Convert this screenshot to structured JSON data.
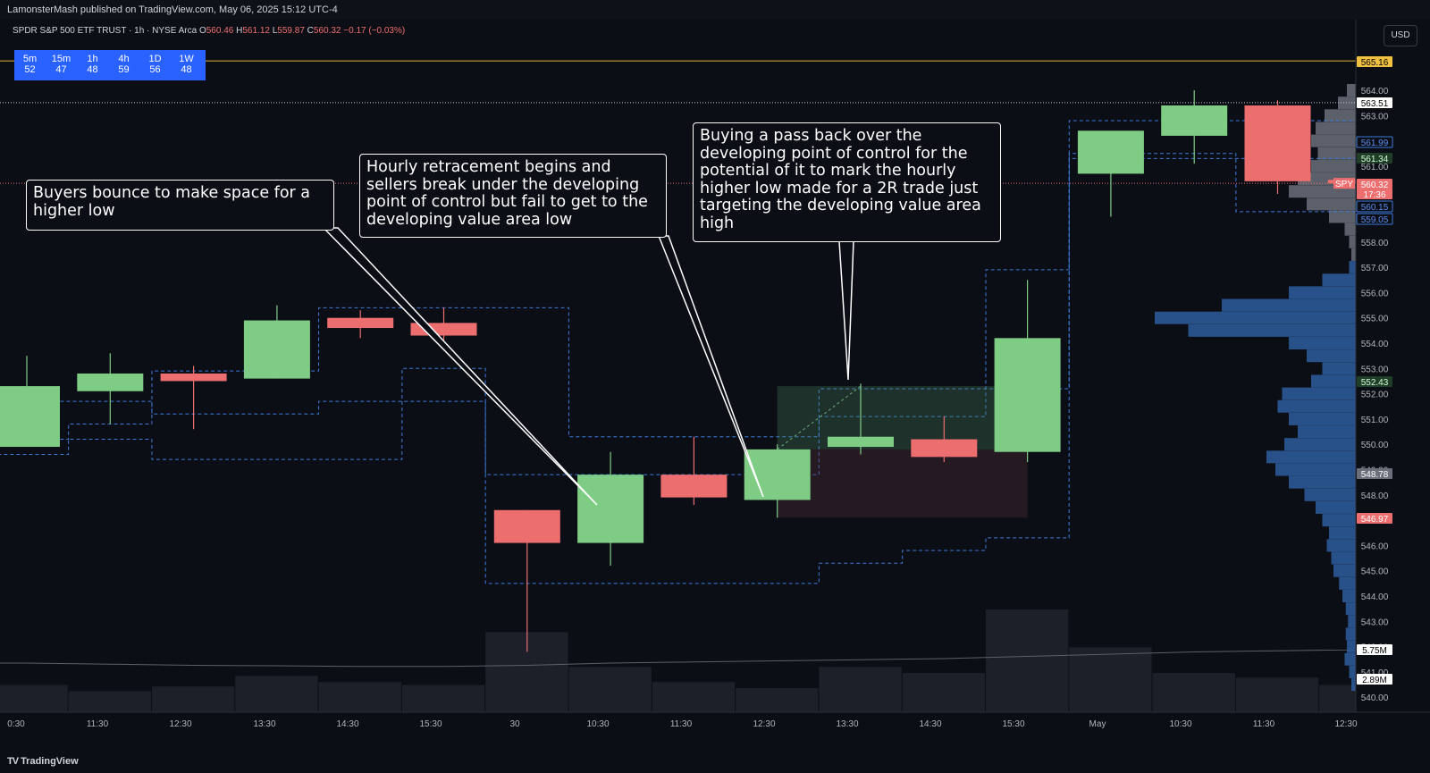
{
  "header": {
    "published": "LamonsterMash published on TradingView.com, May 06, 2025 15:12 UTC-4"
  },
  "legend": {
    "symbol": "SPDR S&P 500 ETF TRUST · 1h · NYSE Arca",
    "o_label": "O",
    "o": "560.46",
    "h_label": "H",
    "h": "561.12",
    "l_label": "L",
    "l": "559.87",
    "c_label": "C",
    "c": "560.32",
    "chg": "−0.17 (−0.03%)"
  },
  "currency_button": "USD",
  "rsi_table": [
    {
      "tf": "5m",
      "val": "52"
    },
    {
      "tf": "15m",
      "val": "47"
    },
    {
      "tf": "1h",
      "val": "48"
    },
    {
      "tf": "4h",
      "val": "59"
    },
    {
      "tf": "1D",
      "val": "56"
    },
    {
      "tf": "1W",
      "val": "48"
    }
  ],
  "callouts": [
    {
      "text": "Buyers bounce to make space for a higher low"
    },
    {
      "text": "Hourly retracement begins and sellers break under the developing point of control but fail to get to the developing value area low"
    },
    {
      "text": "Buying a pass back over the developing point of control for the potential of it to mark the hourly higher low made for a 2R trade just targeting the developing value area high"
    }
  ],
  "footer": {
    "brand": "TradingView",
    "logo": "TV"
  },
  "colors": {
    "background": "#0c0e15",
    "up": "#7fcc85",
    "down": "#ec6e6e",
    "value_area_line": "#3d7bd9",
    "volume_profile": "#2f5d9e",
    "gold_line": "#c8a030",
    "volume_bar": "#1d2029"
  },
  "chart_data": {
    "type": "candlestick",
    "title": "SPDR S&P 500 ETF TRUST · 1h · NYSE Arca",
    "ylim": [
      539.5,
      568.5
    ],
    "y_ticks": [
      540,
      541,
      542,
      543,
      544,
      545,
      546,
      547,
      548,
      549,
      550,
      551,
      552,
      553,
      554,
      555,
      556,
      557,
      558,
      559,
      560,
      561,
      562,
      563,
      564
    ],
    "x_labels": [
      "0:30",
      "11:30",
      "12:30",
      "13:30",
      "14:30",
      "15:30",
      "30",
      "10:30",
      "11:30",
      "12:30",
      "13:30",
      "14:30",
      "15:30",
      "May",
      "10:30",
      "11:30",
      "12:30"
    ],
    "candles": [
      {
        "time": "10:30",
        "o": 549.9,
        "h": 553.5,
        "l": 549.9,
        "c": 552.3
      },
      {
        "time": "11:30",
        "o": 552.1,
        "h": 553.6,
        "l": 550.8,
        "c": 552.8
      },
      {
        "time": "12:30",
        "o": 552.8,
        "h": 553.1,
        "l": 550.6,
        "c": 552.5
      },
      {
        "time": "13:30",
        "o": 552.6,
        "h": 555.5,
        "l": 552.6,
        "c": 554.9
      },
      {
        "time": "14:30",
        "o": 555.0,
        "h": 555.3,
        "l": 554.2,
        "c": 554.6
      },
      {
        "time": "15:30",
        "o": 554.8,
        "h": 555.4,
        "l": 554.0,
        "c": 554.3
      },
      {
        "time": "09:30",
        "o": 547.4,
        "h": 547.4,
        "l": 541.8,
        "c": 546.1
      },
      {
        "time": "10:30",
        "o": 546.1,
        "h": 549.7,
        "l": 545.2,
        "c": 548.8
      },
      {
        "time": "11:30",
        "o": 548.8,
        "h": 550.3,
        "l": 547.6,
        "c": 547.9
      },
      {
        "time": "12:30",
        "o": 547.8,
        "h": 550.0,
        "l": 547.1,
        "c": 549.8
      },
      {
        "time": "13:30",
        "o": 549.9,
        "h": 552.4,
        "l": 549.6,
        "c": 550.3
      },
      {
        "time": "14:30",
        "o": 550.2,
        "h": 551.1,
        "l": 549.3,
        "c": 549.5
      },
      {
        "time": "15:30",
        "o": 549.7,
        "h": 556.5,
        "l": 549.3,
        "c": 554.2
      },
      {
        "time": "09:30",
        "o": 560.7,
        "h": 562.3,
        "l": 559.0,
        "c": 562.4
      },
      {
        "time": "10:30",
        "o": 562.2,
        "h": 564.0,
        "l": 561.1,
        "c": 563.4
      },
      {
        "time": "11:30",
        "o": 563.4,
        "h": 563.6,
        "l": 559.9,
        "c": 560.4
      },
      {
        "time": "12:30",
        "o": 560.46,
        "h": 561.12,
        "l": 559.87,
        "c": 560.32
      }
    ],
    "volume": [
      1.8,
      1.4,
      1.7,
      2.4,
      2.0,
      1.8,
      5.3,
      3.0,
      2.0,
      1.6,
      3.0,
      2.6,
      6.8,
      4.3,
      2.6,
      2.3,
      1.8
    ],
    "volume_ma_values": [
      2.2,
      2.15,
      2.1,
      2.08,
      2.05,
      2.05,
      2.1,
      2.2,
      2.25,
      2.3,
      2.35,
      2.4,
      2.5,
      2.6,
      2.7,
      2.75,
      2.8
    ],
    "poc_line": [
      551.7,
      551.7,
      551.2,
      551.2,
      551.7,
      551.7,
      548.8,
      548.8,
      548.8,
      548.8,
      552.2,
      552.2,
      552.2,
      561.3,
      561.3,
      561.3,
      561.3
    ],
    "vah_line": [
      550.2,
      550.8,
      552.9,
      552.9,
      555.4,
      555.4,
      555.4,
      550.3,
      550.3,
      550.3,
      551.1,
      551.1,
      556.9,
      562.8,
      562.8,
      562.8,
      562.8
    ],
    "val_line": [
      549.6,
      550.2,
      549.4,
      549.4,
      549.4,
      553.0,
      544.5,
      544.5,
      544.5,
      544.5,
      545.3,
      545.8,
      546.3,
      561.5,
      561.5,
      559.2,
      559.2
    ],
    "price_labels": [
      {
        "value": "565.16",
        "kind": "gold"
      },
      {
        "value": "563.51",
        "kind": "white"
      },
      {
        "value": "561.99",
        "kind": "blue"
      },
      {
        "value": "561.34",
        "kind": "green"
      },
      {
        "value": "560.32",
        "kind": "red"
      },
      {
        "value": "17:36",
        "kind": "red"
      },
      {
        "value": "560.15",
        "kind": "blue"
      },
      {
        "value": "559.05",
        "kind": "blue"
      },
      {
        "value": "552.43",
        "kind": "green"
      },
      {
        "value": "548.78",
        "kind": "gray"
      },
      {
        "value": "546.97",
        "kind": "red"
      },
      {
        "value": "5.75M",
        "kind": "white"
      },
      {
        "value": "2.89M",
        "kind": "white"
      }
    ],
    "symbol_tag": "SPY",
    "trade_box": {
      "entry": 549.8,
      "stop": 547.1,
      "target": 552.3,
      "start_index": 9,
      "end_index": 12
    },
    "profile_bins": [
      {
        "price": 540.5,
        "vol": 4
      },
      {
        "price": 541.0,
        "vol": 6
      },
      {
        "price": 541.5,
        "vol": 10
      },
      {
        "price": 542.0,
        "vol": 8
      },
      {
        "price": 542.5,
        "vol": 9
      },
      {
        "price": 543.0,
        "vol": 7
      },
      {
        "price": 543.5,
        "vol": 9
      },
      {
        "price": 544.0,
        "vol": 12
      },
      {
        "price": 544.5,
        "vol": 15
      },
      {
        "price": 545.0,
        "vol": 20
      },
      {
        "price": 545.5,
        "vol": 22
      },
      {
        "price": 546.0,
        "vol": 26
      },
      {
        "price": 546.5,
        "vol": 24
      },
      {
        "price": 547.0,
        "vol": 30
      },
      {
        "price": 547.5,
        "vol": 36
      },
      {
        "price": 548.0,
        "vol": 46
      },
      {
        "price": 548.5,
        "vol": 60
      },
      {
        "price": 549.0,
        "vol": 72
      },
      {
        "price": 549.5,
        "vol": 80
      },
      {
        "price": 550.0,
        "vol": 64
      },
      {
        "price": 550.5,
        "vol": 52
      },
      {
        "price": 551.0,
        "vol": 60
      },
      {
        "price": 551.5,
        "vol": 70
      },
      {
        "price": 552.0,
        "vol": 66
      },
      {
        "price": 552.5,
        "vol": 40
      },
      {
        "price": 553.0,
        "vol": 30
      },
      {
        "price": 553.5,
        "vol": 44
      },
      {
        "price": 554.0,
        "vol": 60
      },
      {
        "price": 554.5,
        "vol": 150
      },
      {
        "price": 555.0,
        "vol": 180
      },
      {
        "price": 555.5,
        "vol": 120
      },
      {
        "price": 556.0,
        "vol": 60
      },
      {
        "price": 556.5,
        "vol": 30
      },
      {
        "price": 557.0,
        "vol": 6
      },
      {
        "price": 557.5,
        "vol": 4
      },
      {
        "price": 558.0,
        "vol": 6
      },
      {
        "price": 558.5,
        "vol": 10
      },
      {
        "price": 559.0,
        "vol": 24
      },
      {
        "price": 559.5,
        "vol": 44
      },
      {
        "price": 560.0,
        "vol": 60
      },
      {
        "price": 560.5,
        "vol": 52
      },
      {
        "price": 561.0,
        "vol": 40
      },
      {
        "price": 561.5,
        "vol": 34
      },
      {
        "price": 562.0,
        "vol": 40
      },
      {
        "price": 562.5,
        "vol": 36
      },
      {
        "price": 563.0,
        "vol": 28
      },
      {
        "price": 563.5,
        "vol": 16
      },
      {
        "price": 564.0,
        "vol": 8
      }
    ]
  }
}
